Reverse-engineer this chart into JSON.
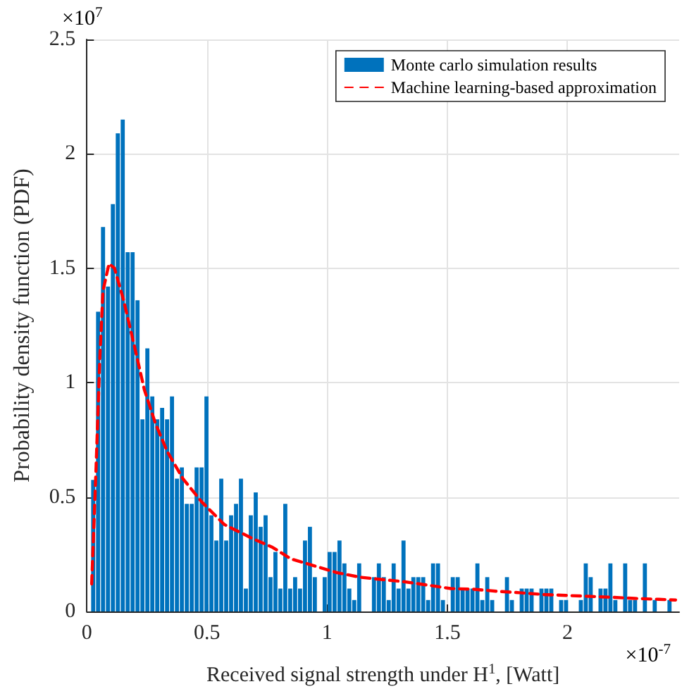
{
  "chart_data": {
    "type": "histogram",
    "xlabel": "Received signal strength under H$^{1}$, [Watt]",
    "ylabel": "Probability density function (PDF)",
    "annotations": [
      "×10$^{7}$",
      "×10$^{-7}$"
    ],
    "bins": [
      0.016,
      0.0365,
      0.057,
      0.0775,
      0.098,
      0.1185,
      0.139,
      0.1595,
      0.18,
      0.2005,
      0.221,
      0.2415,
      0.262,
      0.2825,
      0.303,
      0.3235,
      0.344,
      0.3645,
      0.385,
      0.4055,
      0.426,
      0.4465,
      0.467,
      0.4875,
      0.508,
      0.5285,
      0.549,
      0.5695,
      0.59,
      0.6105,
      0.631,
      0.6515,
      0.672,
      0.6925,
      0.713,
      0.7335,
      0.754,
      0.7745,
      0.795,
      0.8155,
      0.836,
      0.8565,
      0.877,
      0.8975,
      0.918,
      0.9385,
      0.959,
      0.9795,
      1.0,
      1.0205,
      1.041,
      1.0615,
      1.082,
      1.1025,
      1.123,
      1.1435,
      1.164,
      1.1845,
      1.205,
      1.2255,
      1.246,
      1.2665,
      1.287,
      1.3075,
      1.328,
      1.3485,
      1.369,
      1.3895,
      1.41,
      1.4305,
      1.451,
      1.4715,
      1.492,
      1.5125,
      1.533,
      1.5535,
      1.574,
      1.5945,
      1.615,
      1.6355,
      1.656,
      1.6765,
      1.697,
      1.7175,
      1.738,
      1.7585,
      1.779,
      1.7995,
      1.82,
      1.8405,
      1.861,
      1.8815,
      1.902,
      1.9225,
      1.943,
      1.9635,
      1.984,
      2.0045,
      2.025,
      2.0455,
      2.066,
      2.0865,
      2.107,
      2.1275,
      2.148,
      2.1685,
      2.189,
      2.2095,
      2.23,
      2.2505,
      2.271,
      2.2915,
      2.312,
      2.3325,
      2.353,
      2.3735,
      2.394,
      2.4145,
      2.435
    ],
    "series": [
      {
        "name": "Monte carlo simulation results",
        "color": "#0072bd",
        "values": [
          0.575,
          1.31,
          1.68,
          1.42,
          1.78,
          2.09,
          2.15,
          1.57,
          1.57,
          1.36,
          0.84,
          1.15,
          0.94,
          0.84,
          0.89,
          0.84,
          0.94,
          0.58,
          0.63,
          0.47,
          0.47,
          0.63,
          0.63,
          0.94,
          0.42,
          0.31,
          0.58,
          0.31,
          0.42,
          0.47,
          0.58,
          0.1,
          0.42,
          0.52,
          0.37,
          0.42,
          0.15,
          0.26,
          0.1,
          0.47,
          0.1,
          0.15,
          0.1,
          0.31,
          0.37,
          0.15,
          0,
          0.15,
          0.26,
          0.26,
          0.31,
          0.21,
          0.1,
          0.05,
          0.21,
          0,
          0,
          0.15,
          0.21,
          0.15,
          0.05,
          0.21,
          0.1,
          0.31,
          0.1,
          0.15,
          0.15,
          0.15,
          0.05,
          0.21,
          0.21,
          0.05,
          0,
          0.15,
          0.15,
          0.1,
          0.1,
          0.1,
          0.21,
          0.05,
          0.15,
          0.05,
          0,
          0,
          0.15,
          0.05,
          0,
          0.1,
          0.1,
          0.1,
          0,
          0.1,
          0.1,
          0.1,
          0,
          0.05,
          0.05,
          0,
          0,
          0.05,
          0.21,
          0.15,
          0,
          0.1,
          0.1,
          0.21,
          0.05,
          0,
          0.21,
          0.05,
          0.05,
          0,
          0.21,
          0,
          0.05,
          0,
          0,
          0.05
        ]
      },
      {
        "name": "Machine learning-based approximation",
        "type": "line",
        "color": "#ff0000",
        "line_style": "dashed",
        "x": [
          0.02,
          0.038,
          0.054,
          0.067,
          0.092,
          0.115,
          0.153,
          0.2,
          0.239,
          0.286,
          0.334,
          0.4,
          0.477,
          0.572,
          0.687,
          0.773,
          0.849,
          0.945,
          1.04,
          1.135,
          1.224,
          1.32,
          1.42,
          1.515,
          1.61,
          1.71,
          1.8,
          1.9,
          1.995,
          2.09,
          2.185,
          2.28,
          2.38,
          2.45
        ],
        "values": [
          0.12,
          0.62,
          1.11,
          1.4,
          1.52,
          1.5,
          1.36,
          1.15,
          0.97,
          0.82,
          0.7,
          0.58,
          0.48,
          0.38,
          0.32,
          0.28,
          0.23,
          0.2,
          0.17,
          0.15,
          0.14,
          0.13,
          0.115,
          0.1,
          0.097,
          0.088,
          0.082,
          0.074,
          0.07,
          0.066,
          0.062,
          0.057,
          0.053,
          0.05
        ]
      }
    ],
    "xlim": [
      0,
      2.465
    ],
    "xticks": [
      0,
      0.5,
      1,
      1.5,
      2
    ],
    "ylim": [
      0,
      2.5
    ],
    "yticks": [
      0,
      0.5,
      1,
      1.5,
      2,
      2.5
    ],
    "grid": true,
    "legend": "top right"
  }
}
